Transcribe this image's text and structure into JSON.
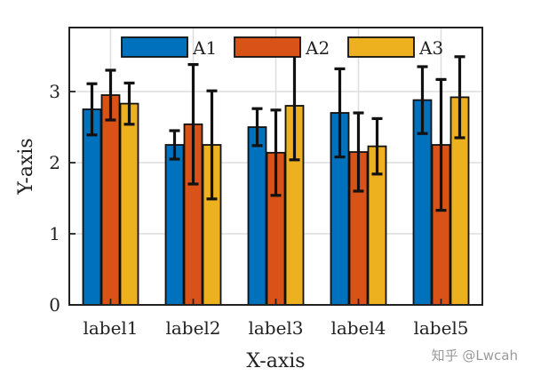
{
  "chart_data": {
    "type": "bar",
    "title": "",
    "xlabel": "X-axis",
    "ylabel": "Y-axis",
    "categories": [
      "label1",
      "label2",
      "label3",
      "label4",
      "label5"
    ],
    "ylim": [
      0,
      3.9
    ],
    "yticks": [
      0,
      1,
      2,
      3
    ],
    "grid": true,
    "legend_position": "top",
    "series": [
      {
        "name": "A1",
        "color": "#0072BD",
        "values": [
          2.75,
          2.25,
          2.5,
          2.7,
          2.88
        ],
        "errors": [
          0.36,
          0.2,
          0.26,
          0.62,
          0.47
        ]
      },
      {
        "name": "A2",
        "color": "#D95319",
        "values": [
          2.95,
          2.54,
          2.14,
          2.15,
          2.25
        ],
        "errors": [
          0.35,
          0.84,
          0.6,
          0.55,
          0.92
        ]
      },
      {
        "name": "A3",
        "color": "#EDB120",
        "values": [
          2.83,
          2.25,
          2.8,
          2.23,
          2.92
        ],
        "errors": [
          0.29,
          0.76,
          0.76,
          0.39,
          0.57
        ]
      }
    ]
  },
  "watermark": "知乎 @Lwcah"
}
